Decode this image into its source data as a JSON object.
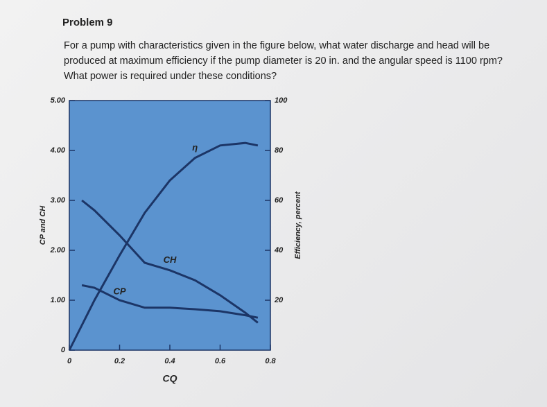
{
  "problem": {
    "title": "Problem 9",
    "lines": [
      "For a pump with characteristics given in the figure below, what water discharge and head will be",
      "produced at maximum efficiency if the pump diameter is 20 in. and the angular speed is 1100 rpm?",
      "What power is required under these conditions?"
    ]
  },
  "chart_data": {
    "type": "line",
    "x_label": "CQ",
    "y_label": "CP and CH",
    "y2_label": "Efficiency, percent",
    "x": [
      0,
      0.05,
      0.1,
      0.2,
      0.3,
      0.4,
      0.5,
      0.6,
      0.7,
      0.75
    ],
    "series": [
      {
        "name": "η",
        "color": "#1c3566",
        "axis": "y2",
        "values": [
          0,
          10,
          20,
          38,
          55,
          68,
          77,
          82,
          83,
          82
        ]
      },
      {
        "name": "CH",
        "color": "#1c3566",
        "values": [
          null,
          3.0,
          2.8,
          2.3,
          1.75,
          1.6,
          1.4,
          1.1,
          0.75,
          0.55
        ]
      },
      {
        "name": "CP",
        "color": "#1c3566",
        "values": [
          null,
          1.3,
          1.25,
          1.0,
          0.85,
          0.85,
          0.82,
          0.78,
          0.7,
          0.65
        ]
      }
    ],
    "xlim": [
      0,
      0.8
    ],
    "xticks": [
      0,
      0.2,
      0.4,
      0.6,
      0.8
    ],
    "ylim": [
      0,
      5
    ],
    "yticks": [
      0,
      {
        "value": 1,
        "label": "1.00"
      },
      {
        "value": 2,
        "label": "2.00"
      },
      {
        "value": 3,
        "label": "3.00"
      },
      {
        "value": 4,
        "label": "4.00"
      },
      {
        "value": 5,
        "label": "5.00"
      }
    ],
    "y2lim": [
      0,
      100
    ],
    "y2ticks": [
      20,
      40,
      60,
      80,
      100
    ]
  }
}
